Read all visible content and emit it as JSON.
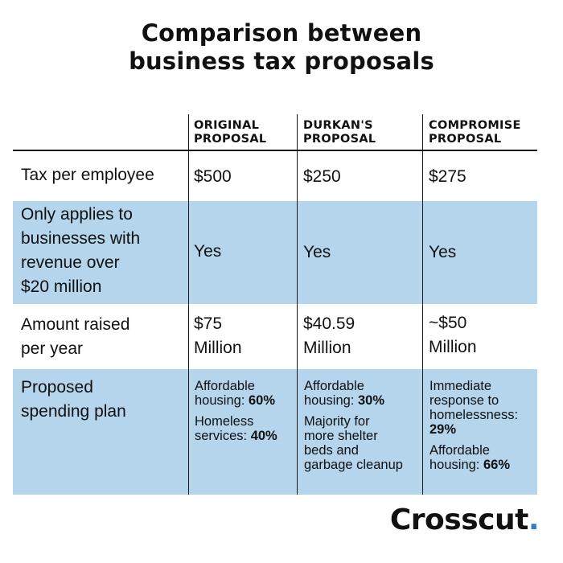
{
  "title": {
    "line1": "Comparison between",
    "line2": "business tax proposals"
  },
  "columns": [
    {
      "line1": "ORIGINAL",
      "line2": "PROPOSAL"
    },
    {
      "line1": "DURKAN'S",
      "line2": "PROPOSAL"
    },
    {
      "line1": "COMPROMISE",
      "line2": "PROPOSAL"
    }
  ],
  "rows": {
    "tax": {
      "label": "Tax per employee",
      "values": [
        "$500",
        "$250",
        "$275"
      ]
    },
    "applies": {
      "label_lines": [
        "Only applies to",
        "businesses with",
        "revenue over",
        "$20 million"
      ],
      "values": [
        "Yes",
        "Yes",
        "Yes"
      ]
    },
    "raised": {
      "label_lines": [
        "Amount raised",
        "per year"
      ],
      "values": [
        {
          "line1": "$75",
          "line2": "Million"
        },
        {
          "line1": "$40.59",
          "line2": "Million"
        },
        {
          "line1": "~$50",
          "line2": "Million"
        }
      ]
    },
    "spending": {
      "label_lines": [
        "Proposed",
        "spending plan"
      ],
      "original": [
        {
          "line1": "Affordable",
          "line2_text": "housing: ",
          "line2_bold": "60%"
        },
        {
          "line1": "Homeless",
          "line2_text": "services: ",
          "line2_bold": "40%"
        }
      ],
      "durkan": [
        {
          "line1": "Affordable",
          "line2_text": "housing: ",
          "line2_bold": "30%"
        },
        {
          "lines": [
            "Majority for",
            "more shelter",
            "beds and",
            "garbage cleanup"
          ]
        }
      ],
      "compromise": [
        {
          "lines": [
            "Immediate",
            "response to",
            "homelessness:"
          ],
          "bold": "29%"
        },
        {
          "line1": "Affordable",
          "line2_text": "housing: ",
          "line2_bold": "66%"
        }
      ]
    }
  },
  "brand": {
    "name": "Crosscut",
    "dot": ".",
    "accent_color": "#2e7fc8",
    "band_color": "#b4d5ec"
  }
}
